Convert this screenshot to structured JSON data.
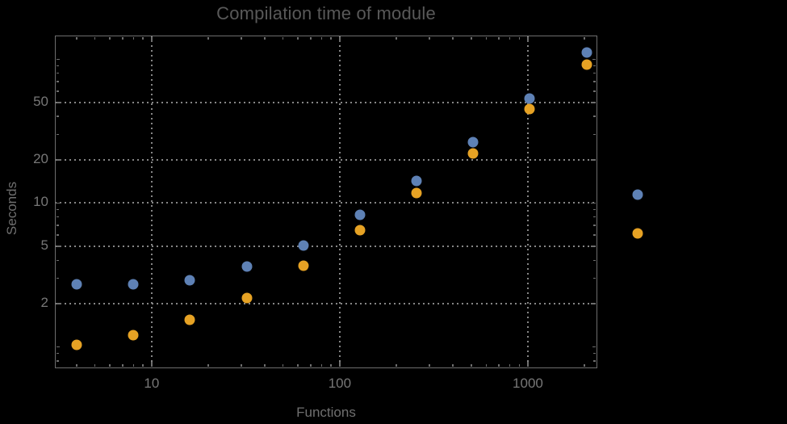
{
  "title": "Compilation time of module",
  "colors": {
    "background": "#000000",
    "frame": "#6e6e6e",
    "grid": "#868686",
    "title_text": "#595959",
    "axis_label_text": "#6f6f6f",
    "tick_label_text": "#777777",
    "series_blue": "#5e81b5",
    "series_orange": "#e6a224"
  },
  "chart_data": {
    "type": "scatter",
    "title": "Compilation time of module",
    "xlabel": "Functions",
    "ylabel": "Seconds",
    "x_scale": "log",
    "y_scale": "log",
    "xlim": [
      3.06,
      2340
    ],
    "ylim": [
      0.71,
      146
    ],
    "grid": "dotted lines at labeled major ticks only",
    "legend_position": "right of frame, markers only (no visible label text)",
    "x": [
      4,
      8,
      16,
      32,
      64,
      128,
      256,
      512,
      1024,
      2048
    ],
    "series": [
      {
        "name": "series-blue",
        "color": "#5e81b5",
        "values": [
          2.74,
          2.74,
          2.9,
          3.6,
          5.05,
          8.3,
          14.3,
          26.5,
          53.5,
          112
        ]
      },
      {
        "name": "series-orange",
        "color": "#e6a224",
        "values": [
          1.03,
          1.21,
          1.55,
          2.2,
          3.65,
          6.45,
          11.7,
          22,
          45,
          92
        ]
      }
    ],
    "x_major_ticks": [
      {
        "value": 10,
        "label": "10"
      },
      {
        "value": 100,
        "label": "100"
      },
      {
        "value": 1000,
        "label": "1000"
      }
    ],
    "y_major_ticks": [
      {
        "value": 2,
        "label": "2"
      },
      {
        "value": 5,
        "label": "5"
      },
      {
        "value": 10,
        "label": "10"
      },
      {
        "value": 20,
        "label": "20"
      },
      {
        "value": 50,
        "label": "50"
      }
    ],
    "y_unlabeled_medium_ticks": [
      1,
      100
    ]
  },
  "legend": {
    "items": [
      {
        "color": "#5e81b5",
        "label": ""
      },
      {
        "color": "#e6a224",
        "label": ""
      }
    ]
  }
}
